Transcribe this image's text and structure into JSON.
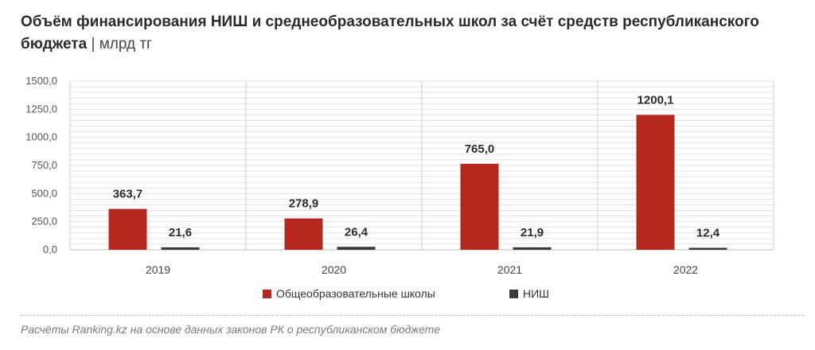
{
  "title": "Объём финансирования НИШ и среднеобразовательных школ за счёт средств республиканского бюджета",
  "separator": "|",
  "unit": "млрд тг",
  "source": "Расчёты Ranking.kz на основе данных законов РК о республиканском бюджете",
  "colors": {
    "general": "#b5281d",
    "nish": "#3a3a3a",
    "grid": "#e2e2e2",
    "axis": "#cfcfcf"
  },
  "chart_data": {
    "type": "bar",
    "categories": [
      "2019",
      "2020",
      "2021",
      "2022"
    ],
    "series": [
      {
        "name": "Общеобразовательные школы",
        "values": [
          363.7,
          278.9,
          765.0,
          1200.1
        ]
      },
      {
        "name": "НИШ",
        "values": [
          21.6,
          26.4,
          21.9,
          12.4
        ]
      }
    ],
    "ylim": [
      0,
      1500
    ],
    "yticks": [
      0,
      250,
      500,
      750,
      1000,
      1250,
      1500
    ],
    "ytick_labels": [
      "0,0",
      "250,0",
      "500,0",
      "750,0",
      "1000,0",
      "1250,0",
      "1500,0"
    ],
    "data_labels": [
      [
        "363,7",
        "278,9",
        "765,0",
        "1200,1"
      ],
      [
        "21,6",
        "26,4",
        "21,9",
        "12,4"
      ]
    ],
    "legend_position": "bottom",
    "grid": true
  }
}
